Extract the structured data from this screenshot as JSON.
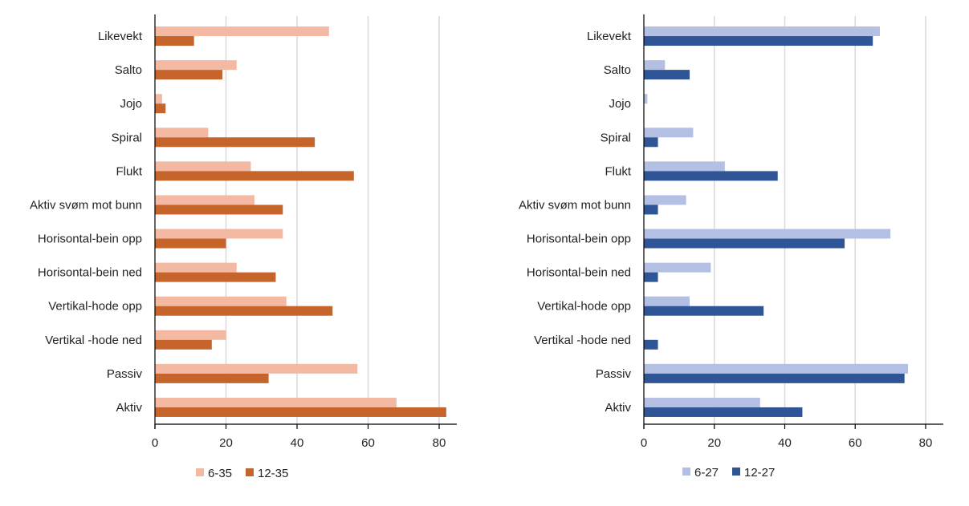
{
  "chart_data": [
    {
      "type": "bar",
      "orientation": "horizontal",
      "title": "",
      "xlabel": "",
      "ylabel": "",
      "categories": [
        "Likevekt",
        "Salto",
        "Jojo",
        "Spiral",
        "Flukt",
        "Aktiv svøm mot bunn",
        "Horisontal-bein opp",
        "Horisontal-bein ned",
        "Vertikal-hode opp",
        "Vertikal -hode ned",
        "Passiv",
        "Aktiv"
      ],
      "xlim": [
        0,
        85
      ],
      "xticks": [
        0,
        20,
        40,
        60,
        80
      ],
      "grid": "vertical",
      "legend_position": "bottom",
      "series": [
        {
          "name": "6-35",
          "color": "#F4B9A3",
          "values": [
            49,
            23,
            2,
            15,
            27,
            28,
            36,
            23,
            37,
            20,
            57,
            68
          ]
        },
        {
          "name": "12-35",
          "color": "#C5652C",
          "values": [
            11,
            19,
            3,
            45,
            56,
            36,
            20,
            34,
            50,
            16,
            32,
            82
          ]
        }
      ]
    },
    {
      "type": "bar",
      "orientation": "horizontal",
      "title": "",
      "xlabel": "",
      "ylabel": "",
      "categories": [
        "Likevekt",
        "Salto",
        "Jojo",
        "Spiral",
        "Flukt",
        "Aktiv svøm mot bunn",
        "Horisontal-bein opp",
        "Horisontal-bein ned",
        "Vertikal-hode opp",
        "Vertikal -hode ned",
        "Passiv",
        "Aktiv"
      ],
      "xlim": [
        0,
        84
      ],
      "xticks": [
        0,
        20,
        40,
        60,
        80
      ],
      "grid": "vertical",
      "legend_position": "bottom",
      "series": [
        {
          "name": "6-27",
          "color": "#B4C0E3",
          "values": [
            67,
            6,
            1,
            14,
            23,
            12,
            70,
            19,
            13,
            0,
            75,
            33
          ]
        },
        {
          "name": "12-27",
          "color": "#2F5597",
          "values": [
            65,
            13,
            0,
            4,
            38,
            4,
            57,
            4,
            34,
            4,
            74,
            45
          ]
        }
      ]
    }
  ]
}
